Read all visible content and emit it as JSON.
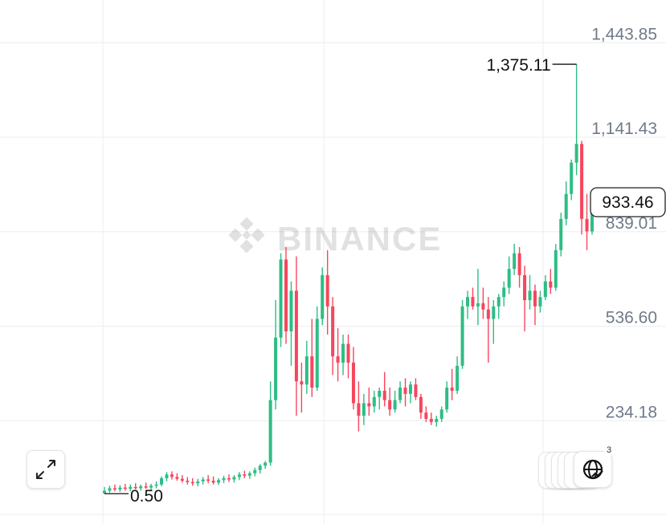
{
  "watermark": {
    "text": "BINANCE"
  },
  "chart_data": {
    "type": "candlestick",
    "y_axis": {
      "ticks": [
        1443.85,
        1141.43,
        839.01,
        536.6,
        234.18
      ],
      "tick_labels": [
        "1,443.85",
        "1,141.43",
        "839.01",
        "536.60",
        "234.18"
      ],
      "ylim": [
        -68.24,
        1503.65
      ]
    },
    "annotations": {
      "high_label": "1,375.11",
      "high_value": 1375.11,
      "low_label": "0.50",
      "low_value": 0.5
    },
    "current_price": {
      "label": "933.46",
      "value": 933.46
    },
    "grid": true,
    "candles": [
      {
        "o": 1.2,
        "h": 22.0,
        "l": 0.5,
        "c": 10.0
      },
      {
        "o": 10.0,
        "h": 26.0,
        "l": 3.5,
        "c": 18.0
      },
      {
        "o": 18.0,
        "h": 30.0,
        "l": 8.0,
        "c": 14.0
      },
      {
        "o": 14.0,
        "h": 28.0,
        "l": 6.0,
        "c": 20.0
      },
      {
        "o": 20.0,
        "h": 32.0,
        "l": 10.0,
        "c": 16.0
      },
      {
        "o": 16.0,
        "h": 30.0,
        "l": 8.0,
        "c": 22.0
      },
      {
        "o": 22.0,
        "h": 34.0,
        "l": 14.0,
        "c": 18.0
      },
      {
        "o": 18.0,
        "h": 30.0,
        "l": 10.0,
        "c": 24.0
      },
      {
        "o": 24.0,
        "h": 36.0,
        "l": 16.0,
        "c": 20.0
      },
      {
        "o": 20.0,
        "h": 32.0,
        "l": 12.0,
        "c": 26.0
      },
      {
        "o": 26.0,
        "h": 40.0,
        "l": 18.0,
        "c": 30.0
      },
      {
        "o": 30.0,
        "h": 56.0,
        "l": 24.0,
        "c": 50.0
      },
      {
        "o": 50.0,
        "h": 70.0,
        "l": 40.0,
        "c": 62.0
      },
      {
        "o": 62.0,
        "h": 72.0,
        "l": 46.0,
        "c": 54.0
      },
      {
        "o": 54.0,
        "h": 66.0,
        "l": 42.0,
        "c": 48.0
      },
      {
        "o": 48.0,
        "h": 60.0,
        "l": 36.0,
        "c": 42.0
      },
      {
        "o": 42.0,
        "h": 54.0,
        "l": 30.0,
        "c": 38.0
      },
      {
        "o": 38.0,
        "h": 50.0,
        "l": 26.0,
        "c": 34.0
      },
      {
        "o": 34.0,
        "h": 48.0,
        "l": 24.0,
        "c": 40.0
      },
      {
        "o": 40.0,
        "h": 54.0,
        "l": 30.0,
        "c": 46.0
      },
      {
        "o": 46.0,
        "h": 60.0,
        "l": 34.0,
        "c": 42.0
      },
      {
        "o": 42.0,
        "h": 56.0,
        "l": 30.0,
        "c": 36.0
      },
      {
        "o": 36.0,
        "h": 50.0,
        "l": 28.0,
        "c": 44.0
      },
      {
        "o": 44.0,
        "h": 58.0,
        "l": 34.0,
        "c": 50.0
      },
      {
        "o": 50.0,
        "h": 62.0,
        "l": 38.0,
        "c": 46.0
      },
      {
        "o": 46.0,
        "h": 60.0,
        "l": 36.0,
        "c": 54.0
      },
      {
        "o": 54.0,
        "h": 70.0,
        "l": 44.0,
        "c": 62.0
      },
      {
        "o": 62.0,
        "h": 74.0,
        "l": 50.0,
        "c": 58.0
      },
      {
        "o": 58.0,
        "h": 72.0,
        "l": 48.0,
        "c": 66.0
      },
      {
        "o": 66.0,
        "h": 84.0,
        "l": 56.0,
        "c": 76.0
      },
      {
        "o": 76.0,
        "h": 95.0,
        "l": 65.0,
        "c": 90.0
      },
      {
        "o": 90.0,
        "h": 105.0,
        "l": 80.0,
        "c": 100.0
      },
      {
        "o": 100.0,
        "h": 360.0,
        "l": 90.0,
        "c": 300.0
      },
      {
        "o": 300.0,
        "h": 620.0,
        "l": 270.0,
        "c": 500.0
      },
      {
        "o": 500.0,
        "h": 770.0,
        "l": 470.0,
        "c": 750.0
      },
      {
        "o": 750.0,
        "h": 790.0,
        "l": 480.0,
        "c": 520.0
      },
      {
        "o": 520.0,
        "h": 680.0,
        "l": 410.0,
        "c": 650.0
      },
      {
        "o": 650.0,
        "h": 760.0,
        "l": 250.0,
        "c": 360.0
      },
      {
        "o": 360.0,
        "h": 420.0,
        "l": 260.0,
        "c": 350.0
      },
      {
        "o": 350.0,
        "h": 490.0,
        "l": 320.0,
        "c": 440.0
      },
      {
        "o": 440.0,
        "h": 560.0,
        "l": 310.0,
        "c": 340.0
      },
      {
        "o": 340.0,
        "h": 600.0,
        "l": 330.0,
        "c": 560.0
      },
      {
        "o": 560.0,
        "h": 725.0,
        "l": 540.0,
        "c": 700.0
      },
      {
        "o": 700.0,
        "h": 780.0,
        "l": 510.0,
        "c": 600.0
      },
      {
        "o": 600.0,
        "h": 630.0,
        "l": 380.0,
        "c": 440.0
      },
      {
        "o": 440.0,
        "h": 530.0,
        "l": 360.0,
        "c": 420.0
      },
      {
        "o": 420.0,
        "h": 510.0,
        "l": 380.0,
        "c": 480.0
      },
      {
        "o": 480.0,
        "h": 510.0,
        "l": 370.0,
        "c": 420.0
      },
      {
        "o": 420.0,
        "h": 470.0,
        "l": 270.0,
        "c": 290.0
      },
      {
        "o": 290.0,
        "h": 360.0,
        "l": 200.0,
        "c": 250.0
      },
      {
        "o": 250.0,
        "h": 320.0,
        "l": 220.0,
        "c": 290.0
      },
      {
        "o": 290.0,
        "h": 340.0,
        "l": 250.0,
        "c": 280.0
      },
      {
        "o": 280.0,
        "h": 330.0,
        "l": 260.0,
        "c": 310.0
      },
      {
        "o": 310.0,
        "h": 340.0,
        "l": 270.0,
        "c": 330.0
      },
      {
        "o": 330.0,
        "h": 390.0,
        "l": 280.0,
        "c": 300.0
      },
      {
        "o": 300.0,
        "h": 340.0,
        "l": 250.0,
        "c": 270.0
      },
      {
        "o": 270.0,
        "h": 330.0,
        "l": 260.0,
        "c": 300.0
      },
      {
        "o": 300.0,
        "h": 360.0,
        "l": 290.0,
        "c": 340.0
      },
      {
        "o": 340.0,
        "h": 370.0,
        "l": 280.0,
        "c": 320.0
      },
      {
        "o": 320.0,
        "h": 360.0,
        "l": 290.0,
        "c": 350.0
      },
      {
        "o": 350.0,
        "h": 370.0,
        "l": 300.0,
        "c": 310.0
      },
      {
        "o": 310.0,
        "h": 320.0,
        "l": 240.0,
        "c": 260.0
      },
      {
        "o": 260.0,
        "h": 280.0,
        "l": 230.0,
        "c": 240.0
      },
      {
        "o": 240.0,
        "h": 260.0,
        "l": 220.0,
        "c": 230.0
      },
      {
        "o": 230.0,
        "h": 250.0,
        "l": 215.0,
        "c": 240.0
      },
      {
        "o": 240.0,
        "h": 280.0,
        "l": 230.0,
        "c": 270.0
      },
      {
        "o": 270.0,
        "h": 360.0,
        "l": 260.0,
        "c": 340.0
      },
      {
        "o": 340.0,
        "h": 400.0,
        "l": 300.0,
        "c": 330.0
      },
      {
        "o": 330.0,
        "h": 440.0,
        "l": 320.0,
        "c": 410.0
      },
      {
        "o": 410.0,
        "h": 620.0,
        "l": 400.0,
        "c": 600.0
      },
      {
        "o": 600.0,
        "h": 650.0,
        "l": 560.0,
        "c": 630.0
      },
      {
        "o": 630.0,
        "h": 660.0,
        "l": 590.0,
        "c": 600.0
      },
      {
        "o": 600.0,
        "h": 720.0,
        "l": 540.0,
        "c": 610.0
      },
      {
        "o": 610.0,
        "h": 660.0,
        "l": 560.0,
        "c": 590.0
      },
      {
        "o": 590.0,
        "h": 630.0,
        "l": 420.0,
        "c": 560.0
      },
      {
        "o": 560.0,
        "h": 620.0,
        "l": 480.0,
        "c": 600.0
      },
      {
        "o": 600.0,
        "h": 640.0,
        "l": 560.0,
        "c": 630.0
      },
      {
        "o": 630.0,
        "h": 680.0,
        "l": 600.0,
        "c": 660.0
      },
      {
        "o": 660.0,
        "h": 760.0,
        "l": 640.0,
        "c": 720.0
      },
      {
        "o": 720.0,
        "h": 800.0,
        "l": 700.0,
        "c": 770.0
      },
      {
        "o": 770.0,
        "h": 790.0,
        "l": 660.0,
        "c": 700.0
      },
      {
        "o": 700.0,
        "h": 730.0,
        "l": 520.0,
        "c": 620.0
      },
      {
        "o": 620.0,
        "h": 700.0,
        "l": 590.0,
        "c": 650.0
      },
      {
        "o": 650.0,
        "h": 670.0,
        "l": 540.0,
        "c": 600.0
      },
      {
        "o": 600.0,
        "h": 650.0,
        "l": 580.0,
        "c": 630.0
      },
      {
        "o": 630.0,
        "h": 700.0,
        "l": 620.0,
        "c": 680.0
      },
      {
        "o": 680.0,
        "h": 720.0,
        "l": 640.0,
        "c": 660.0
      },
      {
        "o": 660.0,
        "h": 800.0,
        "l": 650.0,
        "c": 780.0
      },
      {
        "o": 780.0,
        "h": 900.0,
        "l": 760.0,
        "c": 880.0
      },
      {
        "o": 880.0,
        "h": 1000.0,
        "l": 860.0,
        "c": 960.0
      },
      {
        "o": 960.0,
        "h": 1070.0,
        "l": 940.0,
        "c": 1060.0
      },
      {
        "o": 1060.0,
        "h": 1375.11,
        "l": 1020.0,
        "c": 1120.0
      },
      {
        "o": 1120.0,
        "h": 1130.0,
        "l": 830.0,
        "c": 880.0
      },
      {
        "o": 880.0,
        "h": 960.0,
        "l": 780.0,
        "c": 840.0
      },
      {
        "o": 840.0,
        "h": 933.46,
        "l": 830.0,
        "c": 933.46
      }
    ]
  },
  "controls": {
    "expand_icon": "expand-arrows-icon",
    "globe_icon": "globe-chart-icon",
    "badge_count": "3"
  }
}
